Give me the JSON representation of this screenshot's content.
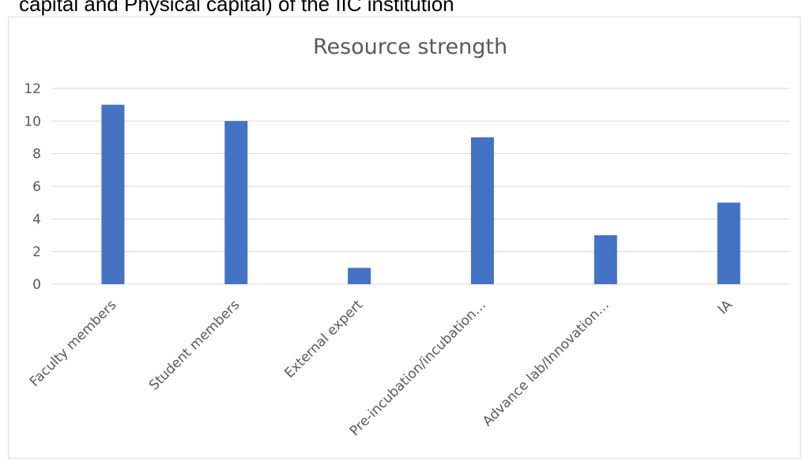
{
  "caption": "capital and Physical capital) of the IIC institution",
  "chart_data": {
    "type": "bar",
    "title": "Resource strength",
    "categories": [
      "Faculty  members",
      "Student members",
      "External expert",
      "Pre-incubation/incubation…",
      "Advance lab/Innovation…",
      "IA"
    ],
    "values": [
      11,
      10,
      1,
      9,
      3,
      5
    ],
    "ylim": [
      0,
      12
    ],
    "yticks": [
      0,
      2,
      4,
      6,
      8,
      10,
      12
    ],
    "grid": true,
    "bar_color": "#4472c4",
    "grid_color": "#d9d9d9",
    "text_color": "#595959"
  }
}
